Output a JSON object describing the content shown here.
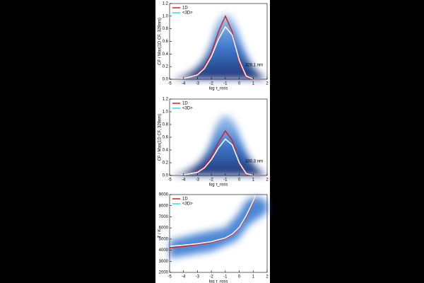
{
  "chart_data": [
    {
      "type": "line",
      "xlabel": "log τ_ross",
      "ylabel": "CF / Max(1D CF, 328nm)",
      "annotation": "328.1 nm",
      "x": [
        -5,
        -4,
        -3,
        -2.5,
        -2,
        -1.5,
        -1,
        -0.5,
        0,
        0.5,
        1,
        1.5,
        2
      ],
      "series": [
        {
          "name": "1D",
          "color": "#d62020",
          "values": [
            0,
            0.01,
            0.08,
            0.2,
            0.42,
            0.75,
            1.0,
            0.75,
            0.25,
            0.03,
            0,
            0,
            0
          ]
        },
        {
          "name": "<3D>",
          "color": "#ffffff",
          "legend_color": "#30e0e0",
          "values": [
            0,
            0.01,
            0.07,
            0.17,
            0.36,
            0.63,
            0.83,
            0.7,
            0.3,
            0.05,
            0,
            0,
            0
          ]
        }
      ],
      "xlim": [
        -5,
        2
      ],
      "xticks": [
        -5,
        -4,
        -3,
        -2,
        -1,
        0,
        1,
        2
      ],
      "ylim": [
        0,
        1.2
      ],
      "yticks": [
        {
          "value": 0,
          "label": "0.0"
        },
        {
          "value": 0.2,
          "label": "0.2"
        },
        {
          "value": 0.4,
          "label": "0.4"
        },
        {
          "value": 0.6,
          "label": "0.6"
        },
        {
          "value": 0.8,
          "label": "0.8"
        },
        {
          "value": 1,
          "label": "1.0"
        },
        {
          "value": 1.2,
          "label": "1.2"
        }
      ],
      "legend": "upper left"
    },
    {
      "type": "line",
      "xlabel": "log τ_ross",
      "ylabel": "CF / Max(1D CF, 328nm)",
      "annotation": "330.3 nm",
      "x": [
        -5,
        -4,
        -3,
        -2.5,
        -2,
        -1.5,
        -1,
        -0.5,
        0,
        0.5,
        1,
        1.5,
        2
      ],
      "series": [
        {
          "name": "1D",
          "color": "#d62020",
          "values": [
            0,
            0.01,
            0.06,
            0.14,
            0.3,
            0.52,
            0.7,
            0.55,
            0.18,
            0.02,
            0,
            0,
            0
          ]
        },
        {
          "name": "<3D>",
          "color": "#ffffff",
          "legend_color": "#30e0e0",
          "values": [
            0,
            0.01,
            0.05,
            0.12,
            0.25,
            0.43,
            0.57,
            0.48,
            0.2,
            0.03,
            0,
            0,
            0
          ]
        }
      ],
      "xlim": [
        -5,
        2
      ],
      "xticks": [
        -5,
        -4,
        -3,
        -2,
        -1,
        0,
        1,
        2
      ],
      "ylim": [
        0,
        1.2
      ],
      "yticks": [
        {
          "value": 0,
          "label": "0.0"
        },
        {
          "value": 0.2,
          "label": "0.2"
        },
        {
          "value": 0.4,
          "label": "0.4"
        },
        {
          "value": 0.6,
          "label": "0.6"
        },
        {
          "value": 0.8,
          "label": "0.8"
        },
        {
          "value": 1,
          "label": "1.0"
        },
        {
          "value": 1.2,
          "label": "1.2"
        }
      ],
      "legend": "upper left"
    },
    {
      "type": "line",
      "xlabel": "log τ_ross",
      "ylabel": "T / K",
      "x": [
        -5,
        -4,
        -3,
        -2,
        -1,
        -0.5,
        0,
        0.5,
        1,
        1.2
      ],
      "series": [
        {
          "name": "1D",
          "color": "#d62020",
          "values": [
            4200,
            4350,
            4500,
            4700,
            5050,
            5400,
            6000,
            7000,
            8300,
            9000
          ]
        },
        {
          "name": "<3D>",
          "color": "#ffffff",
          "legend_color": "#30e0e0",
          "values": [
            4350,
            4450,
            4580,
            4760,
            5100,
            5450,
            6050,
            7100,
            8400,
            9000
          ]
        }
      ],
      "xlim": [
        -5,
        2
      ],
      "xticks": [
        -5,
        -4,
        -3,
        -2,
        -1,
        0,
        1,
        2
      ],
      "ylim": [
        2000,
        9000
      ],
      "yticks": [
        2000,
        3000,
        4000,
        5000,
        6000,
        7000,
        8000,
        9000
      ],
      "legend": "upper left"
    }
  ]
}
